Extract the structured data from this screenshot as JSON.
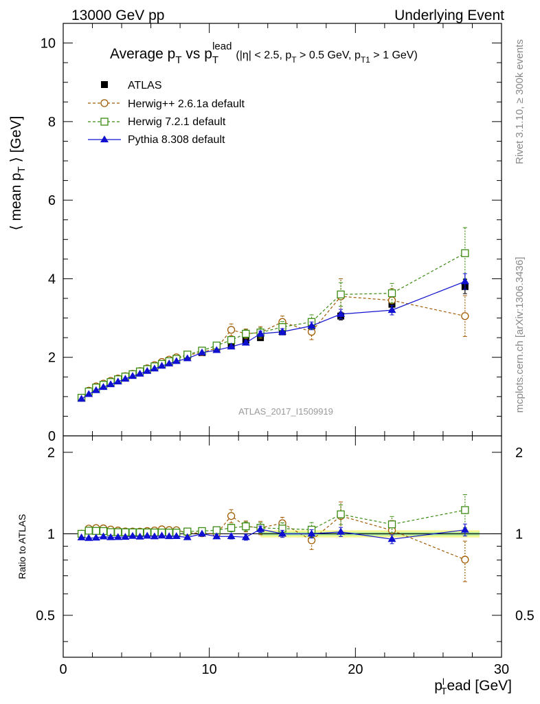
{
  "header": {
    "left": "13000 GeV pp",
    "right": "Underlying Event"
  },
  "side_labels": {
    "top": "Rivet 3.1.10, ≥ 300k events",
    "bottom": "mcplots.cern.ch [arXiv:1306.3436]"
  },
  "watermark": "ATLAS_2017_I1509919",
  "chart_data": {
    "type": "scatter",
    "title": {
      "prefix": "Average p",
      "sub1": "T",
      "mid": " vs p",
      "sub2": "T",
      "sup2": "lead",
      "cuts": "(|η| < 2.5, p",
      "cuts_sub1": "T",
      "cuts_mid": " > 0.5 GeV, p",
      "cuts_sub2": "T1",
      "cuts_end": " > 1 GeV)"
    },
    "ylabel": {
      "pre": "⟨ mean p",
      "sub": "T",
      "post": " ⟩ [GeV]"
    },
    "xlabel": {
      "pre": "p",
      "sup": "l",
      "sub": "T",
      "post": "ead [GeV]"
    },
    "ratio_ylabel": "Ratio to ATLAS",
    "xlim": [
      0,
      30
    ],
    "ylim": [
      0,
      10.5
    ],
    "ratio_ylim": [
      0.35,
      2.3
    ],
    "log_ratio": true,
    "x_ticks": [
      "0",
      "10",
      "20",
      "30"
    ],
    "y_ticks": [
      "0",
      "2",
      "4",
      "6",
      "8",
      "10"
    ],
    "ratio_ticks": [
      "0.5",
      "1",
      "2"
    ],
    "legend_position": "top-left",
    "x": [
      1.25,
      1.75,
      2.25,
      2.75,
      3.25,
      3.75,
      4.25,
      4.75,
      5.25,
      5.75,
      6.25,
      6.75,
      7.25,
      7.75,
      8.5,
      9.5,
      10.5,
      11.5,
      12.5,
      13.5,
      15.0,
      17.0,
      19.0,
      22.5,
      27.5
    ],
    "data": {
      "name": "ATLAS",
      "color": "#000000",
      "values": [
        0.97,
        1.1,
        1.2,
        1.27,
        1.35,
        1.42,
        1.49,
        1.55,
        1.62,
        1.68,
        1.75,
        1.81,
        1.88,
        1.94,
        2.03,
        2.12,
        2.23,
        2.32,
        2.44,
        2.5,
        2.65,
        2.8,
        3.05,
        3.35,
        3.8
      ],
      "errors": [
        0.01,
        0.01,
        0.01,
        0.01,
        0.01,
        0.01,
        0.01,
        0.01,
        0.01,
        0.01,
        0.01,
        0.01,
        0.01,
        0.02,
        0.02,
        0.03,
        0.03,
        0.04,
        0.05,
        0.06,
        0.07,
        0.08,
        0.1,
        0.12,
        0.18
      ]
    },
    "series": [
      {
        "name": "Herwig++ 2.6.1a default",
        "color": "#a05a00",
        "marker": "circle-open",
        "dashed": true,
        "values": [
          0.97,
          1.15,
          1.26,
          1.33,
          1.4,
          1.46,
          1.52,
          1.58,
          1.65,
          1.72,
          1.8,
          1.88,
          1.94,
          2.0,
          2.05,
          2.13,
          2.23,
          2.7,
          2.6,
          2.63,
          2.9,
          2.65,
          3.55,
          3.45,
          3.05
        ],
        "errors": [
          0.01,
          0.01,
          0.01,
          0.01,
          0.01,
          0.01,
          0.02,
          0.02,
          0.02,
          0.03,
          0.03,
          0.03,
          0.04,
          0.04,
          0.05,
          0.06,
          0.08,
          0.15,
          0.12,
          0.15,
          0.15,
          0.2,
          0.45,
          0.3,
          0.52
        ]
      },
      {
        "name": "Herwig 7.2.1 default",
        "color": "#3a8a10",
        "marker": "square-open",
        "dashed": true,
        "values": [
          0.97,
          1.13,
          1.23,
          1.3,
          1.37,
          1.44,
          1.51,
          1.57,
          1.64,
          1.7,
          1.77,
          1.83,
          1.9,
          1.96,
          2.07,
          2.17,
          2.3,
          2.44,
          2.6,
          2.63,
          2.77,
          2.9,
          3.6,
          3.63,
          4.65
        ],
        "errors": [
          0.01,
          0.01,
          0.01,
          0.01,
          0.01,
          0.01,
          0.01,
          0.02,
          0.02,
          0.02,
          0.02,
          0.03,
          0.03,
          0.03,
          0.04,
          0.05,
          0.06,
          0.08,
          0.1,
          0.12,
          0.14,
          0.18,
          0.3,
          0.25,
          0.65
        ]
      },
      {
        "name": "Pythia 8.308 default",
        "color": "#1010d0",
        "marker": "triangle-filled",
        "dashed": false,
        "values": [
          0.94,
          1.06,
          1.16,
          1.24,
          1.31,
          1.38,
          1.45,
          1.52,
          1.58,
          1.65,
          1.71,
          1.78,
          1.84,
          1.9,
          1.97,
          2.12,
          2.18,
          2.27,
          2.37,
          2.6,
          2.65,
          2.8,
          3.1,
          3.2,
          3.93
        ],
        "errors": [
          0.01,
          0.01,
          0.01,
          0.01,
          0.01,
          0.01,
          0.01,
          0.01,
          0.01,
          0.02,
          0.02,
          0.02,
          0.02,
          0.02,
          0.03,
          0.03,
          0.04,
          0.05,
          0.06,
          0.07,
          0.08,
          0.1,
          0.12,
          0.12,
          0.2
        ]
      }
    ]
  }
}
